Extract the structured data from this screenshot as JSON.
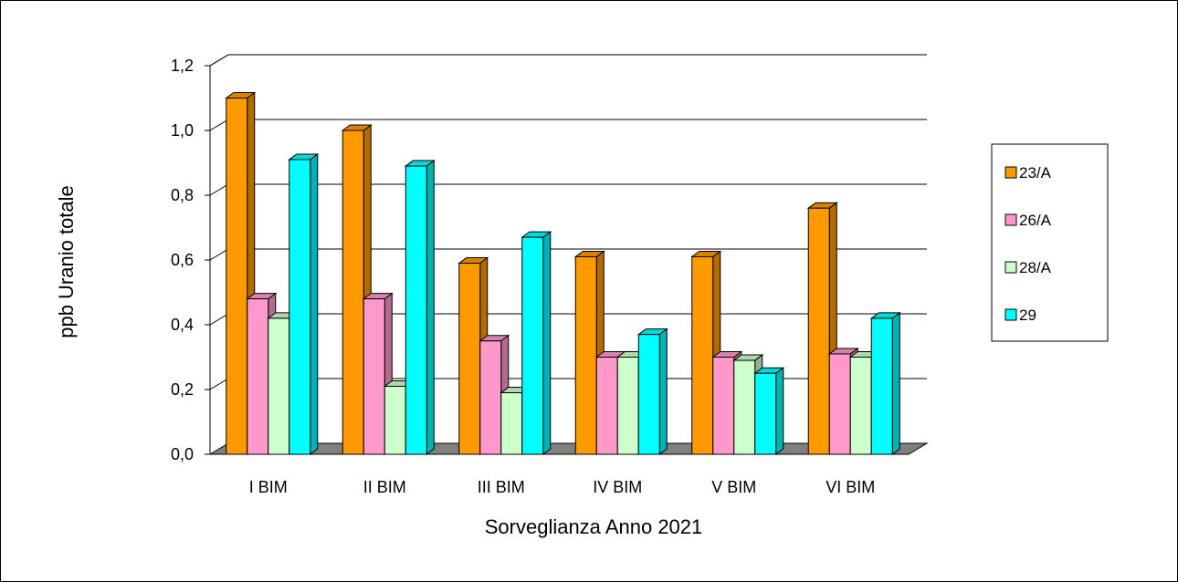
{
  "chart_data": {
    "type": "bar",
    "title": "",
    "xlabel": "Sorveglianza Anno 2021",
    "ylabel": "ppb Uranio totale",
    "categories": [
      "I BIM",
      "II BIM",
      "III BIM",
      "IV BIM",
      "V BIM",
      "VI BIM"
    ],
    "ylim": [
      0,
      1.2
    ],
    "yticks": [
      "0,0",
      "0,2",
      "0,4",
      "0,6",
      "0,8",
      "1,0",
      "1,2"
    ],
    "grid": true,
    "legend_position": "right",
    "series": [
      {
        "name": "23/A",
        "color": "#ff9900",
        "values": [
          1.1,
          1.0,
          0.59,
          0.61,
          0.61,
          0.76
        ]
      },
      {
        "name": "26/A",
        "color": "#ff99cc",
        "values": [
          0.48,
          0.48,
          0.35,
          0.3,
          0.3,
          0.31
        ]
      },
      {
        "name": "28/A",
        "color": "#ccffcc",
        "values": [
          0.42,
          0.21,
          0.19,
          0.3,
          0.29,
          0.3
        ]
      },
      {
        "name": "29",
        "color": "#00ffff",
        "values": [
          0.91,
          0.89,
          0.67,
          0.37,
          0.25,
          0.42
        ]
      }
    ]
  }
}
